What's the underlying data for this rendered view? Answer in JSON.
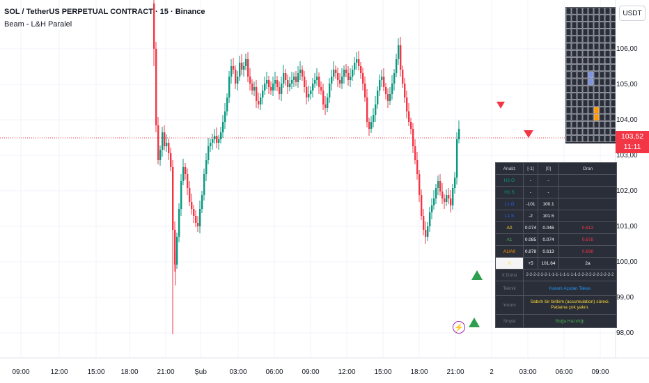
{
  "header": {
    "title": "SOL / TetherUS PERPETUAL CONTRACT · 15 · Binance",
    "indicator": "Beam - L&H Paralel",
    "currency": "USDT"
  },
  "price_axis": {
    "labels": [
      "106,00",
      "105,00",
      "104,00",
      "103,00",
      "102,00",
      "101,00",
      "100,00",
      "99,00",
      "98,00"
    ],
    "last_price": "103,52",
    "countdown": "11:11"
  },
  "time_axis": {
    "labels": [
      "09:00",
      "12:00",
      "15:00",
      "18:00",
      "21:00",
      "Şub",
      "03:00",
      "06:00",
      "09:00",
      "12:00",
      "15:00",
      "18:00",
      "21:00",
      "2",
      "03:00",
      "06:00",
      "09:00"
    ]
  },
  "colors": {
    "up": "#089981",
    "down": "#f23645",
    "marker_up": "#2e9e4f",
    "marker_down": "#f23645",
    "table_bg": "#2a2e39"
  },
  "analysis_table": {
    "header": [
      "Analiz",
      "[-1]",
      "[0]",
      "Oran"
    ],
    "rows": [
      {
        "label": "H2 Ö",
        "c1": "-",
        "c2": "-",
        "c3": "",
        "label_color": "#089981",
        "c3_color": "#d1d4dc"
      },
      {
        "label": "H1 S",
        "c1": "-",
        "c2": "-",
        "c3": "",
        "label_color": "#089981",
        "c3_color": "#d1d4dc"
      },
      {
        "label": "L1 Ö",
        "c1": "-101",
        "c2": "100.1",
        "c3": "",
        "label_color": "#2962ff",
        "c3_color": "#d1d4dc"
      },
      {
        "label": "L1 S",
        "c1": "-2",
        "c2": "101.5",
        "c3": "",
        "label_color": "#2962ff",
        "c3_color": "#d1d4dc"
      },
      {
        "label": "A0",
        "c1": "0.074",
        "c2": "0.046",
        "c3": "0.613",
        "label_color": "#fdd835",
        "c3_color": "#f23645"
      },
      {
        "label": "A1",
        "c1": "0.085",
        "c2": "0.074",
        "c3": "0.878",
        "label_color": "#4caf50",
        "c3_color": "#f23645"
      },
      {
        "label": "A1/A0",
        "c1": "0.878",
        "c2": "0.613",
        "c3": "0.698",
        "label_color": "#ff9800",
        "c3_color": "#f23645"
      },
      {
        "label": "X",
        "c1": "+5",
        "c2": "101.64",
        "c3": "2a",
        "label_color": "#fdd835",
        "c3_color": "#ffffff"
      }
    ],
    "sequence_label": "X Dizisi",
    "sequence": "2-2-2-2-2-2-1-1-1-1-1-1-1-1-2-2-2-2-2-2-2-2-2-2",
    "teknik_label": "Teknik",
    "teknik": "Kararlı Açıdan Takas",
    "yorum_label": "Yorum",
    "yorum": "Sabırlı bir birikim (accumulation) süreci. Patlama çok yakın.",
    "sinyal_label": "Sinyal",
    "sinyal": "Boğa Hazırlığı"
  }
}
